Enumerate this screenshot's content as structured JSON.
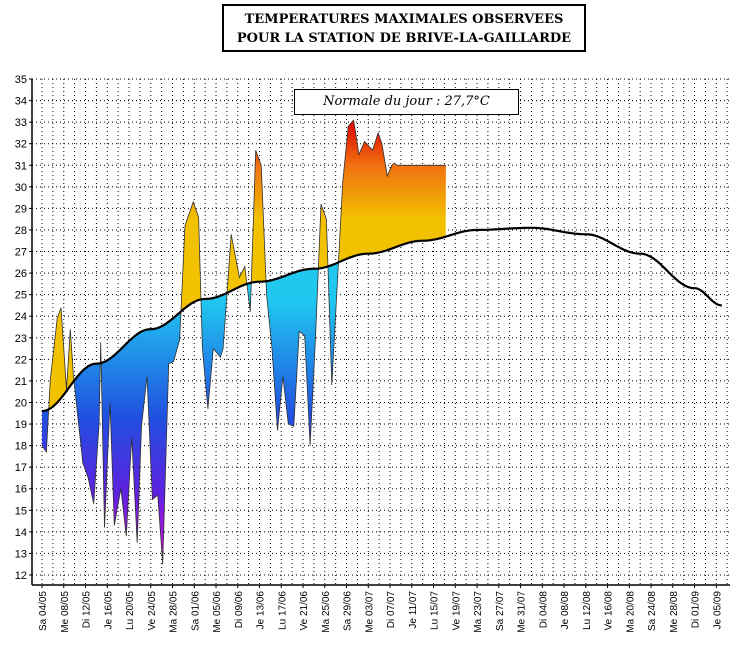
{
  "title": {
    "line1": "TEMPERATURES MAXIMALES OBSERVEES",
    "line2": "POUR LA STATION DE BRIVE-LA-GAILLARDE"
  },
  "annotation": "Normale du jour : 27,7°C",
  "colors": {
    "normal_line": "#000000",
    "above_normal_low": "#f2c200",
    "above_normal_high": "#e00000",
    "below_normal_high": "#20c8f0",
    "below_normal_mid": "#2040e0",
    "below_normal_low": "#c010e0"
  },
  "chart_data": {
    "type": "area",
    "ylim": [
      12,
      35
    ],
    "y_ticks": [
      "12",
      "13",
      "14",
      "15",
      "16",
      "17",
      "18",
      "19",
      "20",
      "21",
      "22",
      "23",
      "24",
      "25",
      "26",
      "27",
      "28",
      "29",
      "30",
      "31",
      "32",
      "33",
      "34",
      "35"
    ],
    "x_labels": [
      "Sa 04/05",
      "Me 08/05",
      "Di 12/05",
      "Je 16/05",
      "Lu 20/05",
      "Ve 24/05",
      "Ma 28/05",
      "Sa 01/06",
      "Me 05/06",
      "Di 09/06",
      "Je 13/06",
      "Lu 17/06",
      "Ve 21/06",
      "Ma 25/06",
      "Sa 29/06",
      "Me 03/07",
      "Di 07/07",
      "Je 11/07",
      "Lu 15/07",
      "Ve 19/07",
      "Ma 23/07",
      "Sa 27/07",
      "Me 31/07",
      "Di 04/08",
      "Je 08/08",
      "Lu 12/08",
      "Ve 16/08",
      "Ma 20/08",
      "Sa 24/08",
      "Me 28/08",
      "Di 01/09",
      "Je 05/09"
    ],
    "x_start_day": 0,
    "x_label_step_days": 4,
    "grid": true,
    "series": [
      {
        "kind": "observed_max",
        "x": [
          0,
          0.8,
          1.5,
          2.8,
          3.5,
          4.5,
          5.2,
          5.8,
          7.5,
          8.5,
          9.5,
          10.5,
          10.8,
          11.5,
          12.5,
          13.3,
          14.5,
          15.5,
          16.5,
          17.5,
          18.3,
          19.3,
          20.3,
          21.3,
          22.2,
          23.3,
          24.2,
          25.3,
          26.3,
          27.8,
          28.8,
          29.5,
          30.5,
          31.5,
          32.8,
          33.3,
          34.8,
          36.3,
          37.3,
          38.3,
          39.3,
          40.3,
          41.3,
          42.3,
          43.3,
          44.3,
          45.3,
          46.3,
          47.3,
          48.3,
          49.3,
          50.3,
          51.3,
          52.3,
          53.3,
          54.3,
          55.3,
          56.3,
          57.3,
          58.3,
          59.3,
          60.8,
          61.8,
          62.5,
          63.5,
          64.3,
          64.8,
          65.3,
          66.3,
          67.3,
          68.3,
          69.3,
          70.3,
          71.3,
          72.3,
          73.3,
          74.3
        ],
        "y": [
          18.0,
          17.7,
          21.0,
          23.9,
          24.4,
          20.6,
          23.4,
          21.2,
          17.2,
          16.5,
          15.3,
          19.0,
          22.8,
          14.2,
          20.0,
          14.3,
          16.0,
          13.8,
          18.4,
          13.5,
          18.9,
          21.2,
          15.5,
          15.7,
          12.5,
          21.8,
          21.9,
          22.9,
          28.2,
          29.3,
          28.6,
          22.5,
          19.7,
          22.5,
          22.1,
          22.5,
          27.8,
          25.8,
          26.3,
          24.2,
          31.7,
          31.0,
          25.0,
          22.5,
          18.7,
          21.2,
          19.0,
          18.9,
          23.3,
          23.1,
          18.0,
          23.0,
          29.2,
          28.5,
          20.8,
          25.5,
          30.2,
          32.8,
          33.1,
          31.5,
          32.1,
          31.7,
          32.5,
          32.0,
          30.5,
          31.0,
          31.1,
          31.0,
          31.0,
          31.0,
          31.0,
          31.0,
          31.0,
          31.0,
          31.0,
          31.0,
          31.0
        ]
      },
      {
        "kind": "daily_normal",
        "x": [
          0,
          10,
          20,
          30,
          40,
          50,
          60,
          70,
          80,
          90,
          100,
          110,
          120,
          125
        ],
        "y": [
          19.6,
          21.8,
          23.4,
          24.8,
          25.6,
          26.2,
          26.9,
          27.5,
          28.0,
          28.1,
          27.8,
          26.9,
          25.3,
          24.5
        ]
      }
    ]
  }
}
